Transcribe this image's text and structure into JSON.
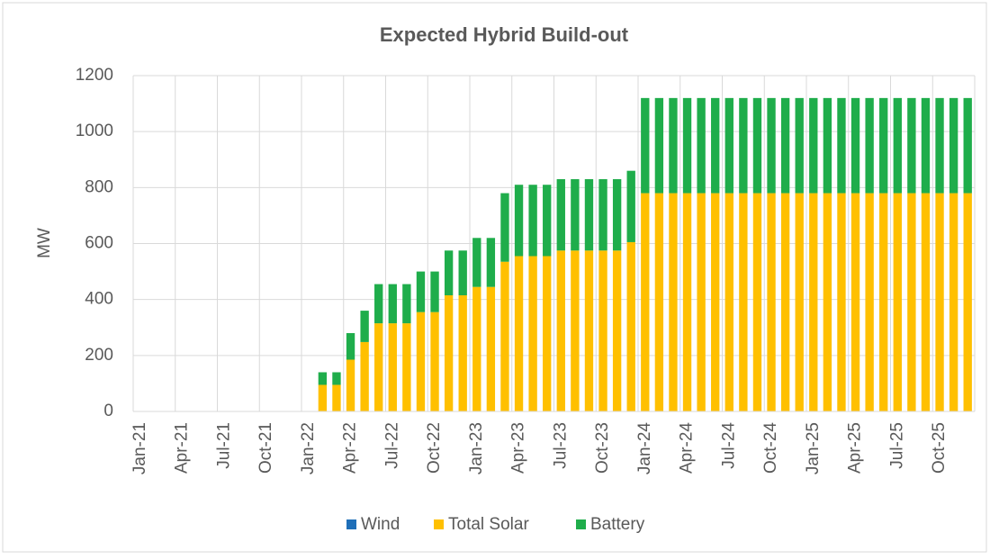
{
  "chart_data": {
    "type": "stacked_bar",
    "title": "Expected Hybrid Build-out",
    "y_label": "MW",
    "categories": [
      "Jan-21",
      null,
      null,
      "Apr-21",
      null,
      null,
      "Jul-21",
      null,
      null,
      "Oct-21",
      null,
      null,
      "Jan-22",
      null,
      null,
      "Apr-22",
      null,
      null,
      "Jul-22",
      null,
      null,
      "Oct-22",
      null,
      null,
      "Jan-23",
      null,
      null,
      "Apr-23",
      null,
      null,
      "Jul-23",
      null,
      null,
      "Oct-23",
      null,
      null,
      "Jan-24",
      null,
      null,
      "Apr-24",
      null,
      null,
      "Jul-24",
      null,
      null,
      "Oct-24",
      null,
      null,
      "Jan-25",
      null,
      null,
      "Apr-25",
      null,
      null,
      "Jul-25",
      null,
      null,
      "Oct-25",
      null,
      null
    ],
    "series": [
      {
        "name": "Wind",
        "color": "#1f6fb8",
        "values": [
          0,
          0,
          0,
          0,
          0,
          0,
          0,
          0,
          0,
          0,
          0,
          0,
          0,
          0,
          0,
          0,
          0,
          0,
          0,
          0,
          0,
          0,
          0,
          0,
          0,
          0,
          0,
          0,
          0,
          0,
          0,
          0,
          0,
          0,
          0,
          0,
          0,
          0,
          0,
          0,
          0,
          0,
          0,
          0,
          0,
          0,
          0,
          0,
          0,
          0,
          0,
          0,
          0,
          0,
          0,
          0,
          0,
          0,
          0,
          0
        ]
      },
      {
        "name": "Total Solar",
        "color": "#ffc000",
        "values": [
          0,
          0,
          0,
          0,
          0,
          0,
          0,
          0,
          0,
          0,
          0,
          0,
          0,
          95,
          95,
          185,
          248,
          315,
          315,
          315,
          355,
          355,
          415,
          415,
          445,
          445,
          535,
          555,
          555,
          555,
          575,
          575,
          575,
          575,
          575,
          605,
          780,
          780,
          780,
          780,
          780,
          780,
          780,
          780,
          780,
          780,
          780,
          780,
          780,
          780,
          780,
          780,
          780,
          780,
          780,
          780,
          780,
          780,
          780,
          780
        ]
      },
      {
        "name": "Battery",
        "color": "#1fad4b",
        "values": [
          0,
          0,
          0,
          0,
          0,
          0,
          0,
          0,
          0,
          0,
          0,
          0,
          0,
          45,
          45,
          95,
          112,
          140,
          140,
          140,
          145,
          145,
          160,
          160,
          175,
          175,
          245,
          255,
          255,
          255,
          255,
          255,
          255,
          255,
          255,
          255,
          340,
          340,
          340,
          340,
          340,
          340,
          340,
          340,
          340,
          340,
          340,
          340,
          340,
          340,
          340,
          340,
          340,
          340,
          340,
          340,
          340,
          340,
          340,
          340
        ]
      }
    ],
    "ylim": [
      0,
      1200
    ],
    "yticks": [
      0,
      200,
      400,
      600,
      800,
      1000,
      1200
    ],
    "grid": true,
    "legend": "bottom"
  }
}
